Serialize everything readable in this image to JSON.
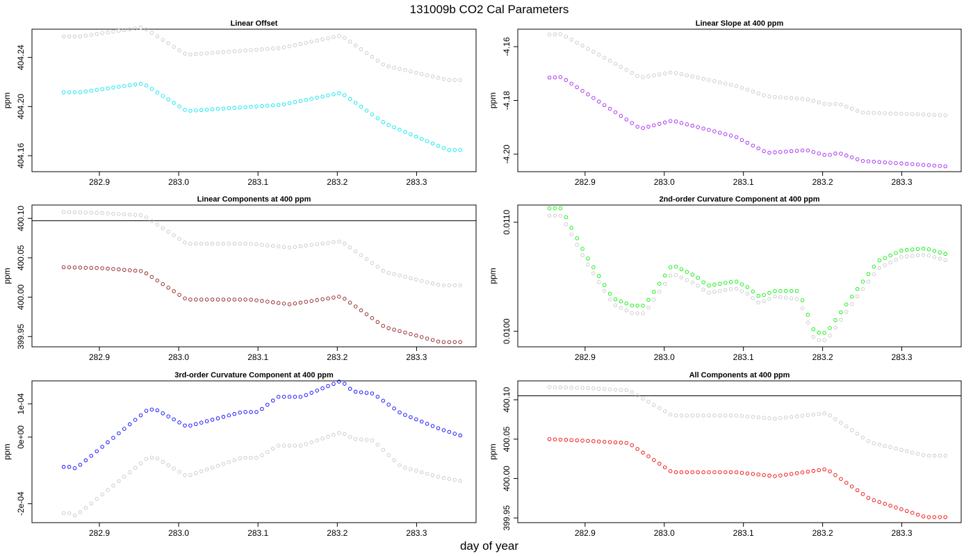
{
  "figure": {
    "title": "131009b   CO2 Cal Parameters",
    "xlabel": "day of year"
  },
  "colors": {
    "reference": "#bdbdbd",
    "axis": "#000000"
  },
  "chart_data": [
    {
      "type": "scatter",
      "title": "Linear Offset",
      "ylabel": "ppm",
      "xlim": [
        282.815,
        283.375
      ],
      "ylim": [
        404.147,
        404.263
      ],
      "xticks": [
        "282.9",
        "283.0",
        "283.1",
        "283.2",
        "283.3"
      ],
      "yticks": [
        "404.16",
        "404.20",
        "404.24"
      ],
      "x": {
        "start": 282.855,
        "end": 283.355,
        "count": 73
      },
      "series": [
        {
          "color": "#00e5ee",
          "knots": [
            [
              282.855,
              404.2116
            ],
            [
              282.875,
              404.2116
            ],
            [
              282.955,
              404.2189
            ],
            [
              283.01,
              404.1964
            ],
            [
              283.13,
              404.2015
            ],
            [
              283.205,
              404.2112
            ],
            [
              283.26,
              404.1863
            ],
            [
              283.34,
              404.1646
            ],
            [
              283.355,
              404.1646
            ]
          ]
        },
        {
          "color": "#c8c8c8",
          "knots": [
            [
              282.855,
              404.2571
            ],
            [
              282.875,
              404.2571
            ],
            [
              282.955,
              404.2645
            ],
            [
              283.01,
              404.2422
            ],
            [
              283.13,
              404.2478
            ],
            [
              283.205,
              404.2578
            ],
            [
              283.26,
              404.2334
            ],
            [
              283.34,
              404.2216
            ],
            [
              283.355,
              404.2216
            ]
          ]
        }
      ]
    },
    {
      "type": "scatter",
      "title": "Linear Slope at 400 ppm",
      "ylabel": "ppm",
      "xlim": [
        282.815,
        283.375
      ],
      "ylim": [
        -4.2065,
        -4.1535
      ],
      "xticks": [
        "282.9",
        "283.0",
        "283.1",
        "283.2",
        "283.3"
      ],
      "yticks": [
        "-4.20",
        "-4.18",
        "-4.16"
      ],
      "x": {
        "start": 282.855,
        "end": 283.355,
        "count": 73
      },
      "series": [
        {
          "color": "#a020f0",
          "knots": [
            [
              282.855,
              -4.1715
            ],
            [
              282.87,
              -4.1713
            ],
            [
              282.97,
              -4.1905
            ],
            [
              283.01,
              -4.1875
            ],
            [
              283.09,
              -4.1935
            ],
            [
              283.13,
              -4.1995
            ],
            [
              283.18,
              -4.1985
            ],
            [
              283.205,
              -4.2005
            ],
            [
              283.22,
              -4.1995
            ],
            [
              283.25,
              -4.2025
            ],
            [
              283.355,
              -4.2045
            ]
          ]
        },
        {
          "color": "#c8c8c8",
          "knots": [
            [
              282.855,
              -4.1555
            ],
            [
              282.87,
              -4.1553
            ],
            [
              282.97,
              -4.1715
            ],
            [
              283.01,
              -4.1695
            ],
            [
              283.09,
              -4.1745
            ],
            [
              283.13,
              -4.1785
            ],
            [
              283.18,
              -4.1795
            ],
            [
              283.205,
              -4.1815
            ],
            [
              283.22,
              -4.1812
            ],
            [
              283.25,
              -4.1845
            ],
            [
              283.355,
              -4.1855
            ]
          ]
        }
      ]
    },
    {
      "type": "scatter",
      "title": "Linear Components at 400 ppm",
      "ylabel": "ppm",
      "xlim": [
        282.815,
        283.375
      ],
      "ylim": [
        399.937,
        400.117
      ],
      "xticks": [
        "282.9",
        "283.0",
        "283.1",
        "283.2",
        "283.3"
      ],
      "yticks": [
        "399.95",
        "400.00",
        "400.05",
        "400.10"
      ],
      "hline": 400.097,
      "x": {
        "start": 282.855,
        "end": 283.355,
        "count": 73
      },
      "series": [
        {
          "color": "#8b1a1a",
          "knots": [
            [
              282.855,
              400.038
            ],
            [
              282.9,
              400.037
            ],
            [
              282.955,
              400.033
            ],
            [
              283.01,
              399.997
            ],
            [
              283.09,
              399.997
            ],
            [
              283.14,
              399.991
            ],
            [
              283.205,
              400.001
            ],
            [
              283.26,
              399.962
            ],
            [
              283.33,
              399.943
            ],
            [
              283.355,
              399.943
            ]
          ]
        },
        {
          "color": "#c8c8c8",
          "knots": [
            [
              282.855,
              400.108
            ],
            [
              282.9,
              400.107
            ],
            [
              282.955,
              400.104
            ],
            [
              283.01,
              400.068
            ],
            [
              283.09,
              400.068
            ],
            [
              283.14,
              400.063
            ],
            [
              283.205,
              400.071
            ],
            [
              283.26,
              400.032
            ],
            [
              283.33,
              400.015
            ],
            [
              283.355,
              400.015
            ]
          ]
        }
      ]
    },
    {
      "type": "scatter",
      "title": "2nd-order Curvature Component at 400 ppm",
      "ylabel": "ppm",
      "xlim": [
        282.815,
        283.375
      ],
      "ylim": [
        0.009858,
        0.011158
      ],
      "xticks": [
        "282.9",
        "283.0",
        "283.1",
        "283.2",
        "283.3"
      ],
      "yticks": [
        "0.0100",
        "0.0110"
      ],
      "x": {
        "start": 282.855,
        "end": 283.355,
        "count": 73
      },
      "series": [
        {
          "color": "#00ee00",
          "knots": [
            [
              282.855,
              0.011128
            ],
            [
              282.87,
              0.011128
            ],
            [
              282.9,
              0.01071
            ],
            [
              282.935,
              0.010302
            ],
            [
              282.96,
              0.010235
            ],
            [
              282.975,
              0.010235
            ],
            [
              283.01,
              0.01061
            ],
            [
              283.04,
              0.010505
            ],
            [
              283.055,
              0.010418
            ],
            [
              283.09,
              0.01046
            ],
            [
              283.105,
              0.010406
            ],
            [
              283.12,
              0.010318
            ],
            [
              283.14,
              0.01037
            ],
            [
              283.17,
              0.01037
            ],
            [
              283.19,
              0.009987
            ],
            [
              283.205,
              0.009987
            ],
            [
              283.24,
              0.01035
            ],
            [
              283.27,
              0.010645
            ],
            [
              283.3,
              0.010742
            ],
            [
              283.33,
              0.01076
            ],
            [
              283.355,
              0.01071
            ]
          ]
        },
        {
          "color": "#c8c8c8",
          "knots": [
            [
              282.855,
              0.011061
            ],
            [
              282.87,
              0.011061
            ],
            [
              282.9,
              0.010653
            ],
            [
              282.935,
              0.01025
            ],
            [
              282.96,
              0.010165
            ],
            [
              282.975,
              0.010165
            ],
            [
              283.01,
              0.010533
            ],
            [
              283.04,
              0.010432
            ],
            [
              283.055,
              0.010352
            ],
            [
              283.09,
              0.010395
            ],
            [
              283.105,
              0.010345
            ],
            [
              283.12,
              0.010258
            ],
            [
              283.14,
              0.01032
            ],
            [
              283.17,
              0.010295
            ],
            [
              283.19,
              0.009918
            ],
            [
              283.205,
              0.009918
            ],
            [
              283.24,
              0.010282
            ],
            [
              283.27,
              0.010575
            ],
            [
              283.3,
              0.010683
            ],
            [
              283.33,
              0.010703
            ],
            [
              283.355,
              0.010652
            ]
          ]
        }
      ]
    },
    {
      "type": "scatter",
      "title": "3rd-order Curvature Component at 400 ppm",
      "ylabel": "ppm",
      "xlim": [
        282.815,
        283.375
      ],
      "ylim": [
        -0.000257,
        0.000169
      ],
      "xticks": [
        "282.9",
        "283.0",
        "283.1",
        "283.2",
        "283.3"
      ],
      "yticks": [
        "-2e-04",
        "0e+00",
        "1e-04"
      ],
      "x": {
        "start": 282.855,
        "end": 283.355,
        "count": 73
      },
      "series": [
        {
          "color": "#0000ff",
          "knots": [
            [
              282.855,
              -8.95e-05
            ],
            [
              282.865,
              -8.95e-05
            ],
            [
              282.87,
              -9.45e-05
            ],
            [
              282.96,
              8.05e-05
            ],
            [
              282.97,
              8.45e-05
            ],
            [
              283.01,
              3.2e-05
            ],
            [
              283.08,
              7.55e-05
            ],
            [
              283.1,
              7.55e-05
            ],
            [
              283.125,
              0.000121
            ],
            [
              283.155,
              0.000121
            ],
            [
              283.205,
              0.0001695
            ],
            [
              283.22,
              0.000137
            ],
            [
              283.245,
              0.000131
            ],
            [
              283.28,
              7.2e-05
            ],
            [
              283.33,
              2.4e-05
            ],
            [
              283.355,
              5e-06
            ]
          ]
        },
        {
          "color": "#c8c8c8",
          "knots": [
            [
              282.855,
              -0.0002285
            ],
            [
              282.865,
              -0.0002285
            ],
            [
              282.87,
              -0.000237
            ],
            [
              282.96,
              -6.4e-05
            ],
            [
              282.97,
              -6e-05
            ],
            [
              283.01,
              -0.0001175
            ],
            [
              283.08,
              -6.2e-05
            ],
            [
              283.1,
              -6.2e-05
            ],
            [
              283.125,
              -2.55e-05
            ],
            [
              283.155,
              -2.55e-05
            ],
            [
              283.205,
              1.5e-05
            ],
            [
              283.22,
              -5e-06
            ],
            [
              283.245,
              -1e-05
            ],
            [
              283.28,
              -8.8e-05
            ],
            [
              283.33,
              -0.000121
            ],
            [
              283.355,
              -0.000131
            ]
          ]
        }
      ]
    },
    {
      "type": "scatter",
      "title": "All Components at 400 ppm",
      "ylabel": "ppm",
      "xlim": [
        282.815,
        283.375
      ],
      "ylim": [
        399.944,
        400.124
      ],
      "xticks": [
        "282.9",
        "283.0",
        "283.1",
        "283.2",
        "283.3"
      ],
      "yticks": [
        "399.95",
        "400.00",
        "400.05",
        "400.10"
      ],
      "hline": 400.105,
      "x": {
        "start": 282.855,
        "end": 283.355,
        "count": 73
      },
      "series": [
        {
          "color": "#ee0000",
          "knots": [
            [
              282.855,
              400.05
            ],
            [
              282.9,
              400.048
            ],
            [
              282.955,
              400.045
            ],
            [
              283.01,
              400.008
            ],
            [
              283.09,
              400.008
            ],
            [
              283.14,
              400.003
            ],
            [
              283.205,
              400.012
            ],
            [
              283.26,
              399.974
            ],
            [
              283.33,
              399.951
            ],
            [
              283.355,
              399.951
            ]
          ]
        },
        {
          "color": "#c8c8c8",
          "knots": [
            [
              282.855,
              400.116
            ],
            [
              282.9,
              400.115
            ],
            [
              282.955,
              400.112
            ],
            [
              283.01,
              400.08
            ],
            [
              283.09,
              400.08
            ],
            [
              283.14,
              400.076
            ],
            [
              283.205,
              400.083
            ],
            [
              283.26,
              400.046
            ],
            [
              283.33,
              400.029
            ],
            [
              283.355,
              400.029
            ]
          ]
        }
      ]
    }
  ]
}
